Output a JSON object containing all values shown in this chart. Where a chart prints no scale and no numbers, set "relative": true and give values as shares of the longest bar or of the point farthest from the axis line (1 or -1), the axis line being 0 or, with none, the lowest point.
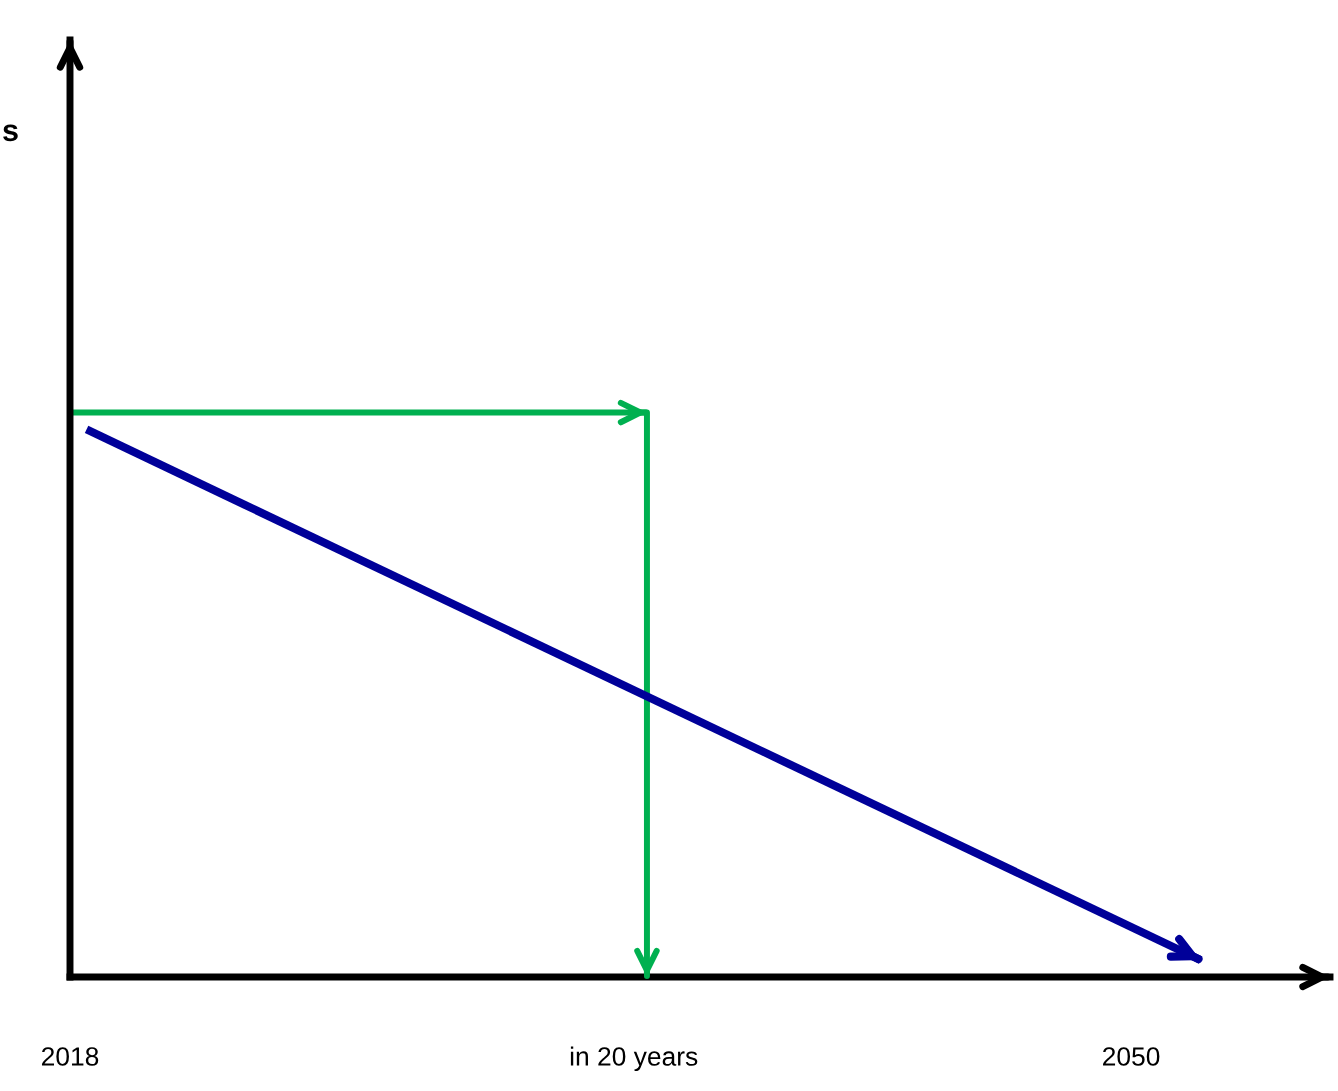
{
  "chart_data": {
    "type": "line",
    "relative": true,
    "annotations": [
      "s"
    ],
    "xlim": [
      2018,
      2056
    ],
    "xticks": [
      2018,
      {
        "value": 2035,
        "label": "in 20 years"
      },
      2050
    ],
    "tick_labels": "x",
    "grid": false,
    "legend": false,
    "marker": "none",
    "line_style": "solid",
    "series": [
      {
        "color": "#00b050",
        "x": [
          2018,
          2035.4,
          2035.4
        ],
        "values": [
          1,
          1,
          0
        ]
      },
      {
        "color": "#000099",
        "x": [
          2018.5,
          2052.1
        ],
        "values": [
          0.97,
          0.03
        ]
      }
    ]
  }
}
